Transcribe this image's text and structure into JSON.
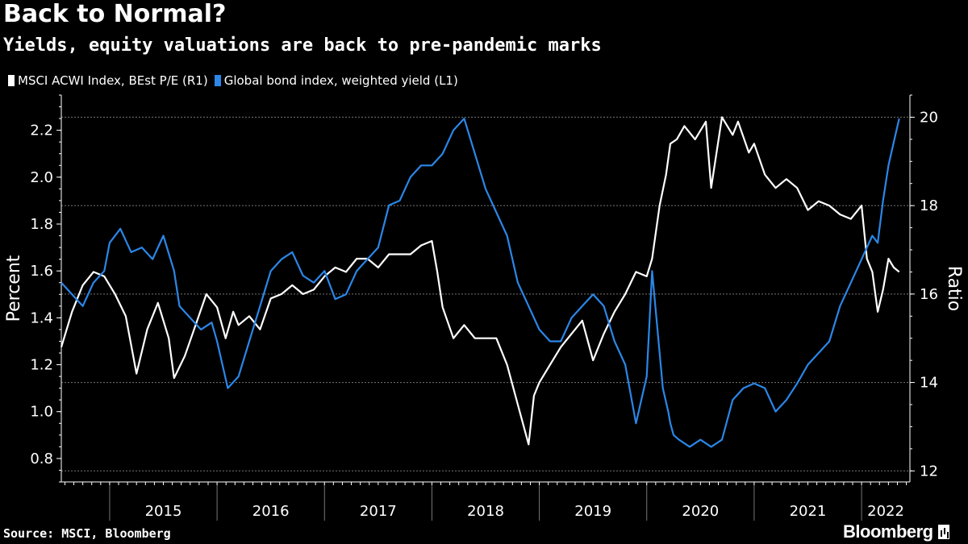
{
  "title": "Back to Normal?",
  "subtitle": "Yields, equity valuations are back to pre-pandemic marks",
  "source": "Source: MSCI, Bloomberg",
  "brand": "Bloomberg",
  "colors": {
    "series_pe": "#ffffff",
    "series_yield": "#2b87e8",
    "grid": "#777777",
    "background": "#000000"
  },
  "chart_data": {
    "type": "line",
    "title": "Back to Normal?",
    "subtitle": "Yields, equity valuations are back to pre-pandemic marks",
    "ylabel_left": "Percent",
    "ylabel_right": "Ratio",
    "ylim_left": [
      0.7,
      2.35
    ],
    "ylim_right": [
      11.75,
      20.5
    ],
    "yticks_left": [
      "0.8",
      "1.0",
      "1.2",
      "1.4",
      "1.6",
      "1.8",
      "2.0",
      "2.2"
    ],
    "yticks_right": [
      "12",
      "14",
      "16",
      "18",
      "20"
    ],
    "xlim": [
      2014.55,
      2022.45
    ],
    "xticks": [
      "2015",
      "2016",
      "2017",
      "2018",
      "2019",
      "2020",
      "2021",
      "2022"
    ],
    "series": [
      {
        "name": "MSCI ACWI Index, BEst P/E (R1)",
        "axis": "right",
        "x": [
          2014.55,
          2014.65,
          2014.75,
          2014.85,
          2014.95,
          2015.05,
          2015.15,
          2015.25,
          2015.35,
          2015.45,
          2015.55,
          2015.6,
          2015.7,
          2015.8,
          2015.9,
          2016.0,
          2016.08,
          2016.15,
          2016.2,
          2016.3,
          2016.4,
          2016.5,
          2016.6,
          2016.7,
          2016.8,
          2016.9,
          2017.0,
          2017.1,
          2017.2,
          2017.3,
          2017.4,
          2017.5,
          2017.6,
          2017.7,
          2017.8,
          2017.9,
          2018.0,
          2018.05,
          2018.1,
          2018.2,
          2018.3,
          2018.4,
          2018.5,
          2018.6,
          2018.7,
          2018.8,
          2018.9,
          2018.95,
          2019.0,
          2019.1,
          2019.2,
          2019.3,
          2019.4,
          2019.5,
          2019.6,
          2019.7,
          2019.8,
          2019.9,
          2020.0,
          2020.05,
          2020.12,
          2020.18,
          2020.22,
          2020.28,
          2020.35,
          2020.45,
          2020.55,
          2020.6,
          2020.7,
          2020.8,
          2020.85,
          2020.95,
          2021.0,
          2021.1,
          2021.2,
          2021.3,
          2021.4,
          2021.5,
          2021.6,
          2021.7,
          2021.8,
          2021.9,
          2022.0,
          2022.05,
          2022.1,
          2022.15,
          2022.2,
          2022.25,
          2022.3,
          2022.35
        ],
        "values": [
          14.8,
          15.6,
          16.2,
          16.5,
          16.4,
          16.0,
          15.5,
          14.2,
          15.2,
          15.8,
          15.0,
          14.1,
          14.6,
          15.3,
          16.0,
          15.7,
          15.0,
          15.6,
          15.3,
          15.5,
          15.2,
          15.9,
          16.0,
          16.2,
          16.0,
          16.1,
          16.4,
          16.6,
          16.5,
          16.8,
          16.8,
          16.6,
          16.9,
          16.9,
          16.9,
          17.1,
          17.2,
          16.5,
          15.7,
          15.0,
          15.3,
          15.0,
          15.0,
          15.0,
          14.4,
          13.5,
          12.6,
          13.7,
          14.0,
          14.4,
          14.8,
          15.1,
          15.4,
          14.5,
          15.1,
          15.6,
          16.0,
          16.5,
          16.4,
          16.8,
          18.0,
          18.7,
          19.4,
          19.5,
          19.8,
          19.5,
          19.9,
          18.4,
          20.0,
          19.6,
          19.9,
          19.2,
          19.4,
          18.7,
          18.4,
          18.6,
          18.4,
          17.9,
          18.1,
          18.0,
          17.8,
          17.7,
          18.0,
          16.8,
          16.5,
          15.6,
          16.1,
          16.8,
          16.6,
          16.5
        ]
      },
      {
        "name": "Global bond index, weighted yield (L1)",
        "axis": "left",
        "x": [
          2014.55,
          2014.65,
          2014.75,
          2014.85,
          2014.95,
          2015.0,
          2015.1,
          2015.2,
          2015.3,
          2015.4,
          2015.5,
          2015.6,
          2015.65,
          2015.75,
          2015.85,
          2015.95,
          2016.0,
          2016.1,
          2016.2,
          2016.3,
          2016.4,
          2016.5,
          2016.6,
          2016.7,
          2016.8,
          2016.9,
          2017.0,
          2017.1,
          2017.2,
          2017.3,
          2017.4,
          2017.5,
          2017.6,
          2017.7,
          2017.8,
          2017.9,
          2018.0,
          2018.1,
          2018.2,
          2018.3,
          2018.4,
          2018.5,
          2018.6,
          2018.7,
          2018.8,
          2018.9,
          2019.0,
          2019.1,
          2019.2,
          2019.3,
          2019.4,
          2019.5,
          2019.6,
          2019.7,
          2019.8,
          2019.9,
          2020.0,
          2020.05,
          2020.15,
          2020.2,
          2020.22,
          2020.25,
          2020.3,
          2020.4,
          2020.5,
          2020.6,
          2020.7,
          2020.8,
          2020.9,
          2021.0,
          2021.1,
          2021.2,
          2021.3,
          2021.4,
          2021.5,
          2021.6,
          2021.7,
          2021.8,
          2021.9,
          2022.0,
          2022.05,
          2022.1,
          2022.15,
          2022.2,
          2022.25,
          2022.3,
          2022.35
        ],
        "values": [
          1.55,
          1.5,
          1.45,
          1.55,
          1.6,
          1.72,
          1.78,
          1.68,
          1.7,
          1.65,
          1.75,
          1.6,
          1.45,
          1.4,
          1.35,
          1.38,
          1.3,
          1.1,
          1.15,
          1.3,
          1.45,
          1.6,
          1.65,
          1.68,
          1.58,
          1.55,
          1.6,
          1.48,
          1.5,
          1.6,
          1.65,
          1.7,
          1.88,
          1.9,
          2.0,
          2.05,
          2.05,
          2.1,
          2.2,
          2.25,
          2.1,
          1.95,
          1.85,
          1.75,
          1.55,
          1.45,
          1.35,
          1.3,
          1.3,
          1.4,
          1.45,
          1.5,
          1.45,
          1.3,
          1.2,
          0.95,
          1.15,
          1.6,
          1.1,
          1.0,
          0.95,
          0.9,
          0.88,
          0.85,
          0.88,
          0.85,
          0.88,
          1.05,
          1.1,
          1.12,
          1.1,
          1.0,
          1.05,
          1.12,
          1.2,
          1.25,
          1.3,
          1.45,
          1.55,
          1.65,
          1.7,
          1.75,
          1.72,
          1.9,
          2.05,
          2.15,
          2.25
        ]
      }
    ]
  }
}
